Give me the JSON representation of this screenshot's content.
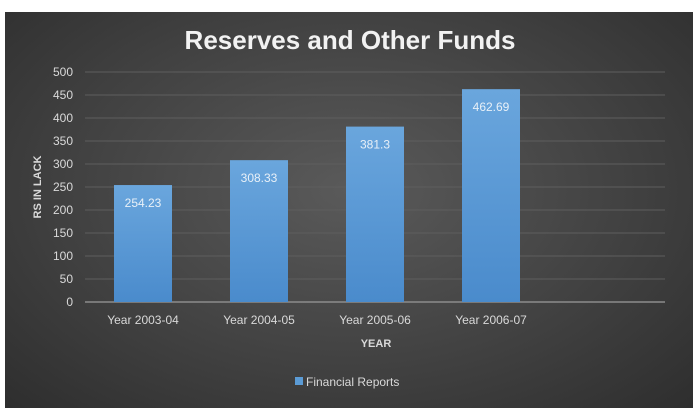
{
  "chart_data": {
    "type": "bar",
    "title": "Reserves and Other Funds",
    "xlabel": "YEAR",
    "ylabel": "RS IN LACK",
    "categories": [
      "Year 2003-04",
      "Year 2004-05",
      "Year 2005-06",
      "Year 2006-07"
    ],
    "series": [
      {
        "name": "Financial Reports",
        "values": [
          254.23,
          308.33,
          381.3,
          462.69
        ]
      }
    ],
    "data_labels": [
      "254.23",
      "308.33",
      "381.3",
      "462.69"
    ],
    "ylim": [
      0,
      500
    ],
    "yticks": [
      "0",
      "50",
      "100",
      "150",
      "200",
      "250",
      "300",
      "350",
      "400",
      "450",
      "500"
    ],
    "grid": true,
    "legend": "bottom",
    "colors": {
      "bar": "#5b9bd5",
      "background": "#404040",
      "text": "#d9d9d9"
    }
  }
}
